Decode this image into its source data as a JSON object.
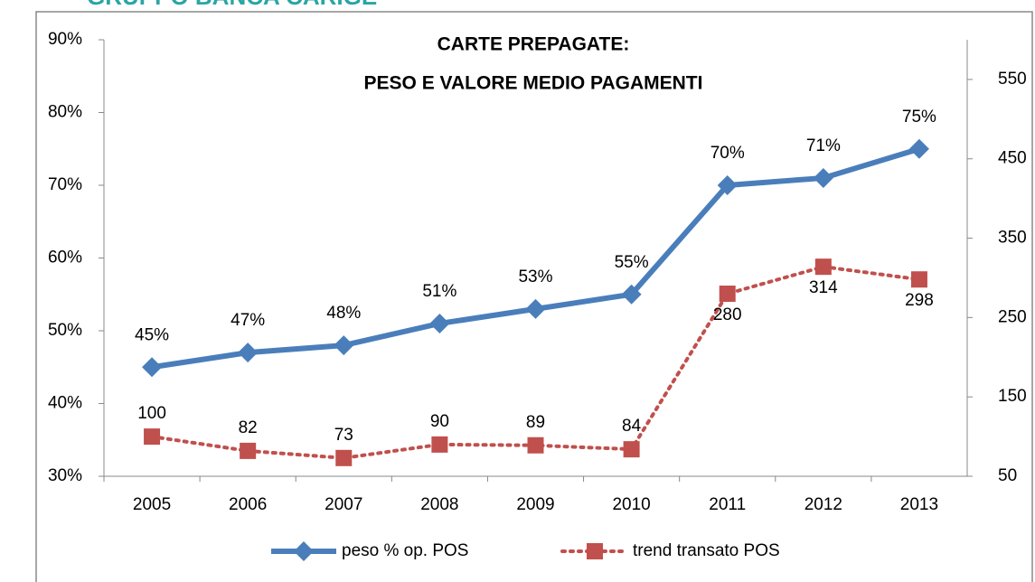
{
  "header": "GRUPPO BANCA CARIGE",
  "chart_data": {
    "type": "line",
    "title": [
      "CARTE PREPAGATE:",
      "PESO E VALORE MEDIO PAGAMENTI"
    ],
    "categories": [
      "2005",
      "2006",
      "2007",
      "2008",
      "2009",
      "2010",
      "2011",
      "2012",
      "2013"
    ],
    "series": [
      {
        "name": "peso % op. POS",
        "color": "#4a7ebb",
        "line_style": "solid",
        "marker": "diamond",
        "values": [
          45,
          47,
          48,
          51,
          53,
          55,
          70,
          71,
          75
        ],
        "value_labels": [
          "45%",
          "47%",
          "48%",
          "51%",
          "53%",
          "55%",
          "70%",
          "71%",
          "75%"
        ]
      },
      {
        "name": "trend transato POS",
        "color": "#c0504d",
        "line_style": "dotted",
        "marker": "square",
        "axis": "y2",
        "values": [
          100,
          82,
          73,
          90,
          89,
          84,
          280,
          314,
          298
        ]
      }
    ],
    "ylim": [
      30,
      90
    ],
    "yticks": [
      {
        "value": 30,
        "label": "30%"
      },
      {
        "value": 40,
        "label": "40%"
      },
      {
        "value": 50,
        "label": "50%"
      },
      {
        "value": 60,
        "label": "60%"
      },
      {
        "value": 70,
        "label": "70%"
      },
      {
        "value": 80,
        "label": "80%"
      },
      {
        "value": 90,
        "label": "90%"
      }
    ],
    "y2lim": [
      50,
      600
    ],
    "y2ticks": [
      50,
      150,
      250,
      350,
      450,
      550
    ],
    "legend": "bottom"
  }
}
